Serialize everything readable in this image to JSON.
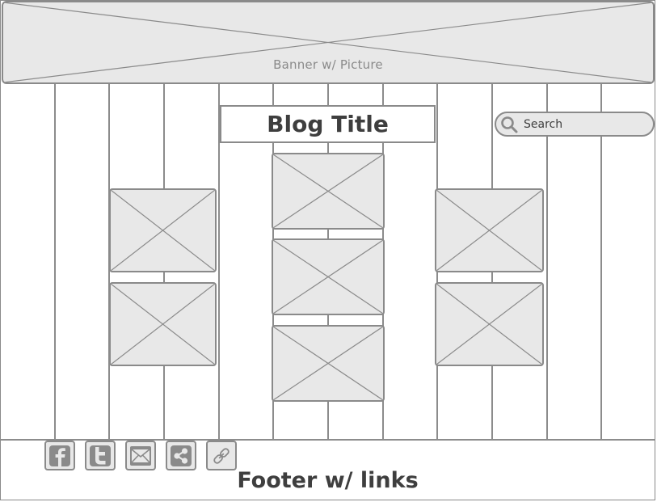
{
  "banner": {
    "label": "Banner w/ Picture"
  },
  "header": {
    "blog_title": "Blog Title"
  },
  "search": {
    "label": "Search"
  },
  "footer": {
    "label": "Footer w/ links",
    "links": [
      {
        "icon": "facebook-icon"
      },
      {
        "icon": "twitter-icon"
      },
      {
        "icon": "email-icon"
      },
      {
        "icon": "share-icon"
      },
      {
        "icon": "link-icon"
      }
    ]
  },
  "colors": {
    "stroke": "#8a8a8a",
    "placeholder_fill": "#e8e8e8",
    "text": "#3e3e3e"
  }
}
